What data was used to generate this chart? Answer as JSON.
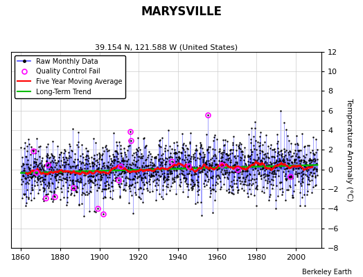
{
  "title": "MARYSVILLE",
  "subtitle": "39.154 N, 121.588 W (United States)",
  "ylabel": "Temperature Anomaly (°C)",
  "attribution": "Berkeley Earth",
  "xlim": [
    1855,
    2013
  ],
  "ylim": [
    -8,
    12
  ],
  "yticks": [
    -8,
    -6,
    -4,
    -2,
    0,
    2,
    4,
    6,
    8,
    10,
    12
  ],
  "xticks": [
    1860,
    1880,
    1900,
    1920,
    1940,
    1960,
    1980,
    2000
  ],
  "start_year": 1860,
  "end_year": 2011,
  "bg_color": "#ffffff",
  "line_color": "#4444ff",
  "ma_color": "#ff0000",
  "trend_color": "#00bb00",
  "qc_color": "#ff00ff",
  "seed": 7
}
